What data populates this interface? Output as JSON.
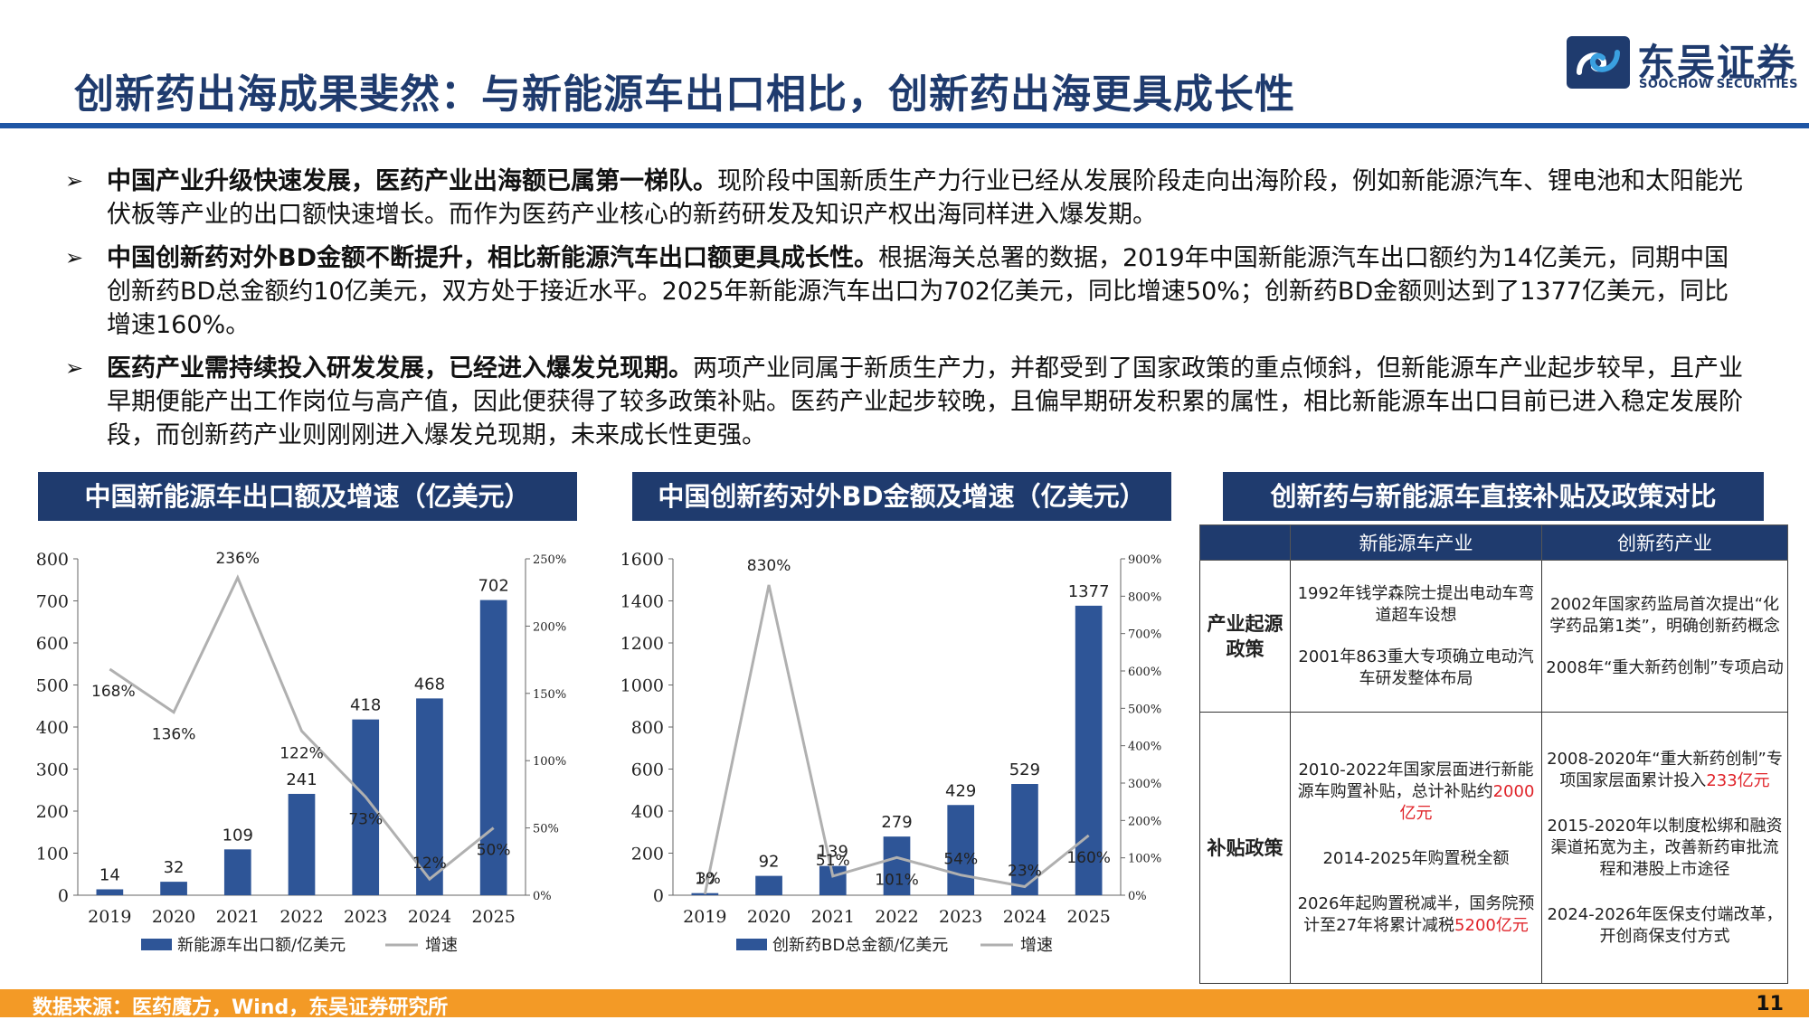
{
  "header": {
    "title": "创新药出海成果斐然：与新能源车出口相比，创新药出海更具成长性",
    "logo_cn": "东吴证券",
    "logo_en": "SOOCHOW SECURITIES"
  },
  "bullets": [
    {
      "marker": "➢",
      "bold": "中国产业升级快速发展，医药产业出海额已属第一梯队。",
      "text": "现阶段中国新质生产力行业已经从发展阶段走向出海阶段，例如新能源汽车、锂电池和太阳能光伏板等产业的出口额快速增长。而作为医药产业核心的新药研发及知识产权出海同样进入爆发期。"
    },
    {
      "marker": "➢",
      "bold": "中国创新药对外BD金额不断提升，相比新能源汽车出口额更具成长性。",
      "text": "根据海关总署的数据，2019年中国新能源汽车出口额约为14亿美元，同期中国创新药BD总金额约10亿美元，双方处于接近水平。2025年新能源汽车出口为702亿美元，同比增速50%；创新药BD金额则达到了1377亿美元，同比增速160%。"
    },
    {
      "marker": "➢",
      "bold": "医药产业需持续投入研发发展，已经进入爆发兑现期。",
      "text": "两项产业同属于新质生产力，并都受到了国家政策的重点倾斜，但新能源车产业起步较早，且产业早期便能产出工作岗位与高产值，因此便获得了较多政策补贴。医药产业起步较晚，且偏早期研发积累的属性，相比新能源车出口目前已进入稳定发展阶段，而创新药产业则刚刚进入爆发兑现期，未来成长性更强。"
    }
  ],
  "panels": {
    "chart1_title": "中国新能源车出口额及增速（亿美元）",
    "chart2_title": "中国创新药对外BD金额及增速（亿美元）",
    "table_title": "创新药与新能源车直接补贴及政策对比"
  },
  "chart_data": [
    {
      "type": "bar",
      "categories": [
        "2019",
        "2020",
        "2021",
        "2022",
        "2023",
        "2024",
        "2025"
      ],
      "series": [
        {
          "name": "新能源车出口额/亿美元",
          "type": "bar",
          "axis": "left",
          "values": [
            14,
            32,
            109,
            241,
            418,
            468,
            702
          ],
          "labels": [
            "14",
            "32",
            "109",
            "241",
            "418",
            "468",
            "702"
          ]
        },
        {
          "name": "增速",
          "type": "line",
          "axis": "right",
          "values": [
            168,
            136,
            236,
            122,
            73,
            12,
            50
          ],
          "labels": [
            "168%",
            "136%",
            "236%",
            "122%",
            "73%",
            "12%",
            "50%"
          ]
        }
      ],
      "ylim_left": [
        0,
        800
      ],
      "yticks_left": [
        "0",
        "100",
        "200",
        "300",
        "400",
        "500",
        "600",
        "700",
        "800"
      ],
      "ylim_right": [
        0,
        250
      ],
      "yticks_right": [
        "0%",
        "50%",
        "100%",
        "150%",
        "200%",
        "250%"
      ],
      "legend_position": "bottom",
      "colors": {
        "bar": "#2e5597",
        "line": "#b0b0b0"
      }
    },
    {
      "type": "bar",
      "categories": [
        "2019",
        "2020",
        "2021",
        "2022",
        "2023",
        "2024",
        "2025"
      ],
      "series": [
        {
          "name": "创新药BD总金额/亿美元",
          "type": "bar",
          "axis": "left",
          "values": [
            10,
            92,
            139,
            279,
            429,
            529,
            1377
          ],
          "labels": [
            "10",
            "92",
            "139",
            "279",
            "429",
            "529",
            "1377"
          ]
        },
        {
          "name": "增速",
          "type": "line",
          "axis": "right",
          "values": [
            3,
            830,
            51,
            101,
            54,
            23,
            160
          ],
          "labels": [
            "3%",
            "830%",
            "51%",
            "101%",
            "54%",
            "23%",
            "160%"
          ]
        }
      ],
      "ylim_left": [
        0,
        1600
      ],
      "yticks_left": [
        "0",
        "200",
        "400",
        "600",
        "800",
        "1000",
        "1200",
        "1400",
        "1600"
      ],
      "ylim_right": [
        0,
        900
      ],
      "yticks_right": [
        "0%",
        "100%",
        "200%",
        "300%",
        "400%",
        "500%",
        "600%",
        "700%",
        "800%",
        "900%"
      ],
      "legend_position": "bottom",
      "colors": {
        "bar": "#2e5597",
        "line": "#b0b0b0"
      }
    }
  ],
  "table": {
    "columns": [
      "",
      "新能源车产业",
      "创新药产业"
    ],
    "rows": [
      {
        "head": "产业起源政策",
        "nev": [
          {
            "text": "1992年钱学森院士提出电动车弯道超车设想"
          },
          {
            "text": "2001年863重大专项确立电动汽车研发整体布局"
          }
        ],
        "drug": [
          {
            "text": "2002年国家药监局首次提出“化学药品第1类”，明确创新药概念"
          },
          {
            "text": "2008年“重大新药创制”专项启动"
          }
        ]
      },
      {
        "head": "补贴政策",
        "nev": [
          {
            "text": "2010-2022年国家层面进行新能源车购置补贴，总计补贴约",
            "red": "2000亿元"
          },
          {
            "text": "2014-2025年购置税全额"
          },
          {
            "text": "2026年起购置税减半，国务院预计至27年将累计减税",
            "red": "5200亿元"
          }
        ],
        "drug": [
          {
            "text": "2008-2020年“重大新药创制”专项国家层面累计投入",
            "red": "233亿元"
          },
          {
            "text": "2015-2020年以制度松绑和融资渠道拓宽为主，改善新药审批流程和港股上市途径"
          },
          {
            "text": "2024-2026年医保支付端改革，开创商保支付方式"
          }
        ]
      }
    ]
  },
  "footer": {
    "source": "数据来源：医药魔方，Wind，东吴证券研究所",
    "page": "11"
  }
}
